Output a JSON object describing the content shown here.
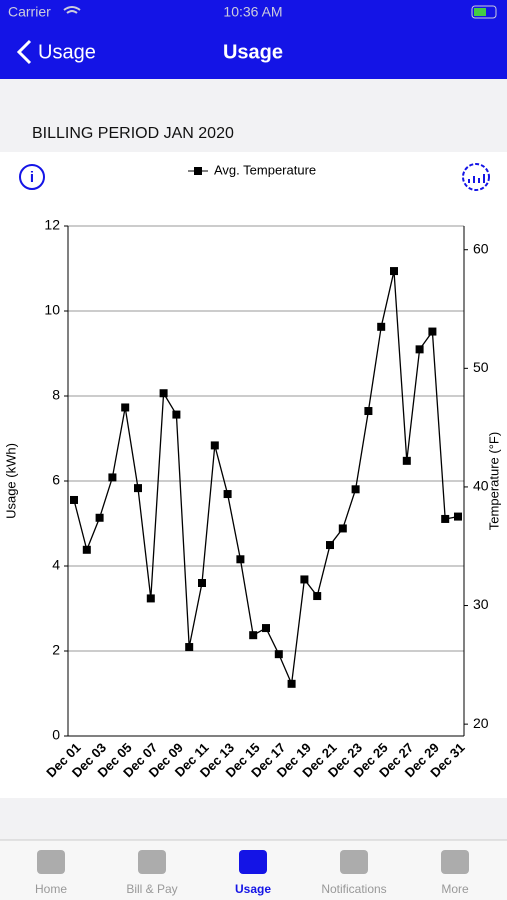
{
  "status_bar": {
    "carrier": "Carrier",
    "time": "10:36 AM"
  },
  "nav": {
    "back": "Usage",
    "title": "Usage"
  },
  "section": {
    "title": "BILLING PERIOD JAN 2020"
  },
  "chart_data": {
    "type": "line",
    "categories": [
      "Dec 01",
      null,
      "Dec 03",
      null,
      "Dec 05",
      null,
      "Dec 07",
      null,
      "Dec 09",
      null,
      "Dec 11",
      null,
      "Dec 13",
      null,
      "Dec 15",
      null,
      "Dec 17",
      null,
      "Dec 19",
      null,
      "Dec 21",
      null,
      "Dec 23",
      null,
      "Dec 25",
      null,
      "Dec 27",
      null,
      "Dec 29",
      null,
      "Dec 31"
    ],
    "y_label": "Usage (kWh)",
    "y2_label": "Temperature (°F)",
    "ylim": [
      0,
      12
    ],
    "yticks": [
      0,
      2,
      4,
      6,
      8,
      10,
      12
    ],
    "y2lim": [
      19,
      62
    ],
    "y2ticks": [
      20,
      30,
      40,
      50,
      60
    ],
    "grid": true,
    "series": [
      {
        "name": "Avg. Temperature",
        "color": "#000000",
        "axis": "y2",
        "values": [
          38.9,
          34.7,
          37.4,
          40.8,
          46.7,
          39.9,
          30.6,
          47.9,
          46.1,
          26.5,
          31.9,
          43.5,
          39.4,
          33.9,
          27.5,
          28.1,
          25.9,
          23.4,
          32.2,
          30.8,
          35.1,
          36.5,
          39.8,
          46.4,
          53.5,
          58.2,
          42.2,
          51.6,
          53.1,
          37.3,
          37.5
        ]
      }
    ]
  },
  "tab_bar": {
    "items": [
      "Home",
      "Bill & Pay",
      "Usage",
      "Notifications",
      "More"
    ],
    "active": 2
  }
}
